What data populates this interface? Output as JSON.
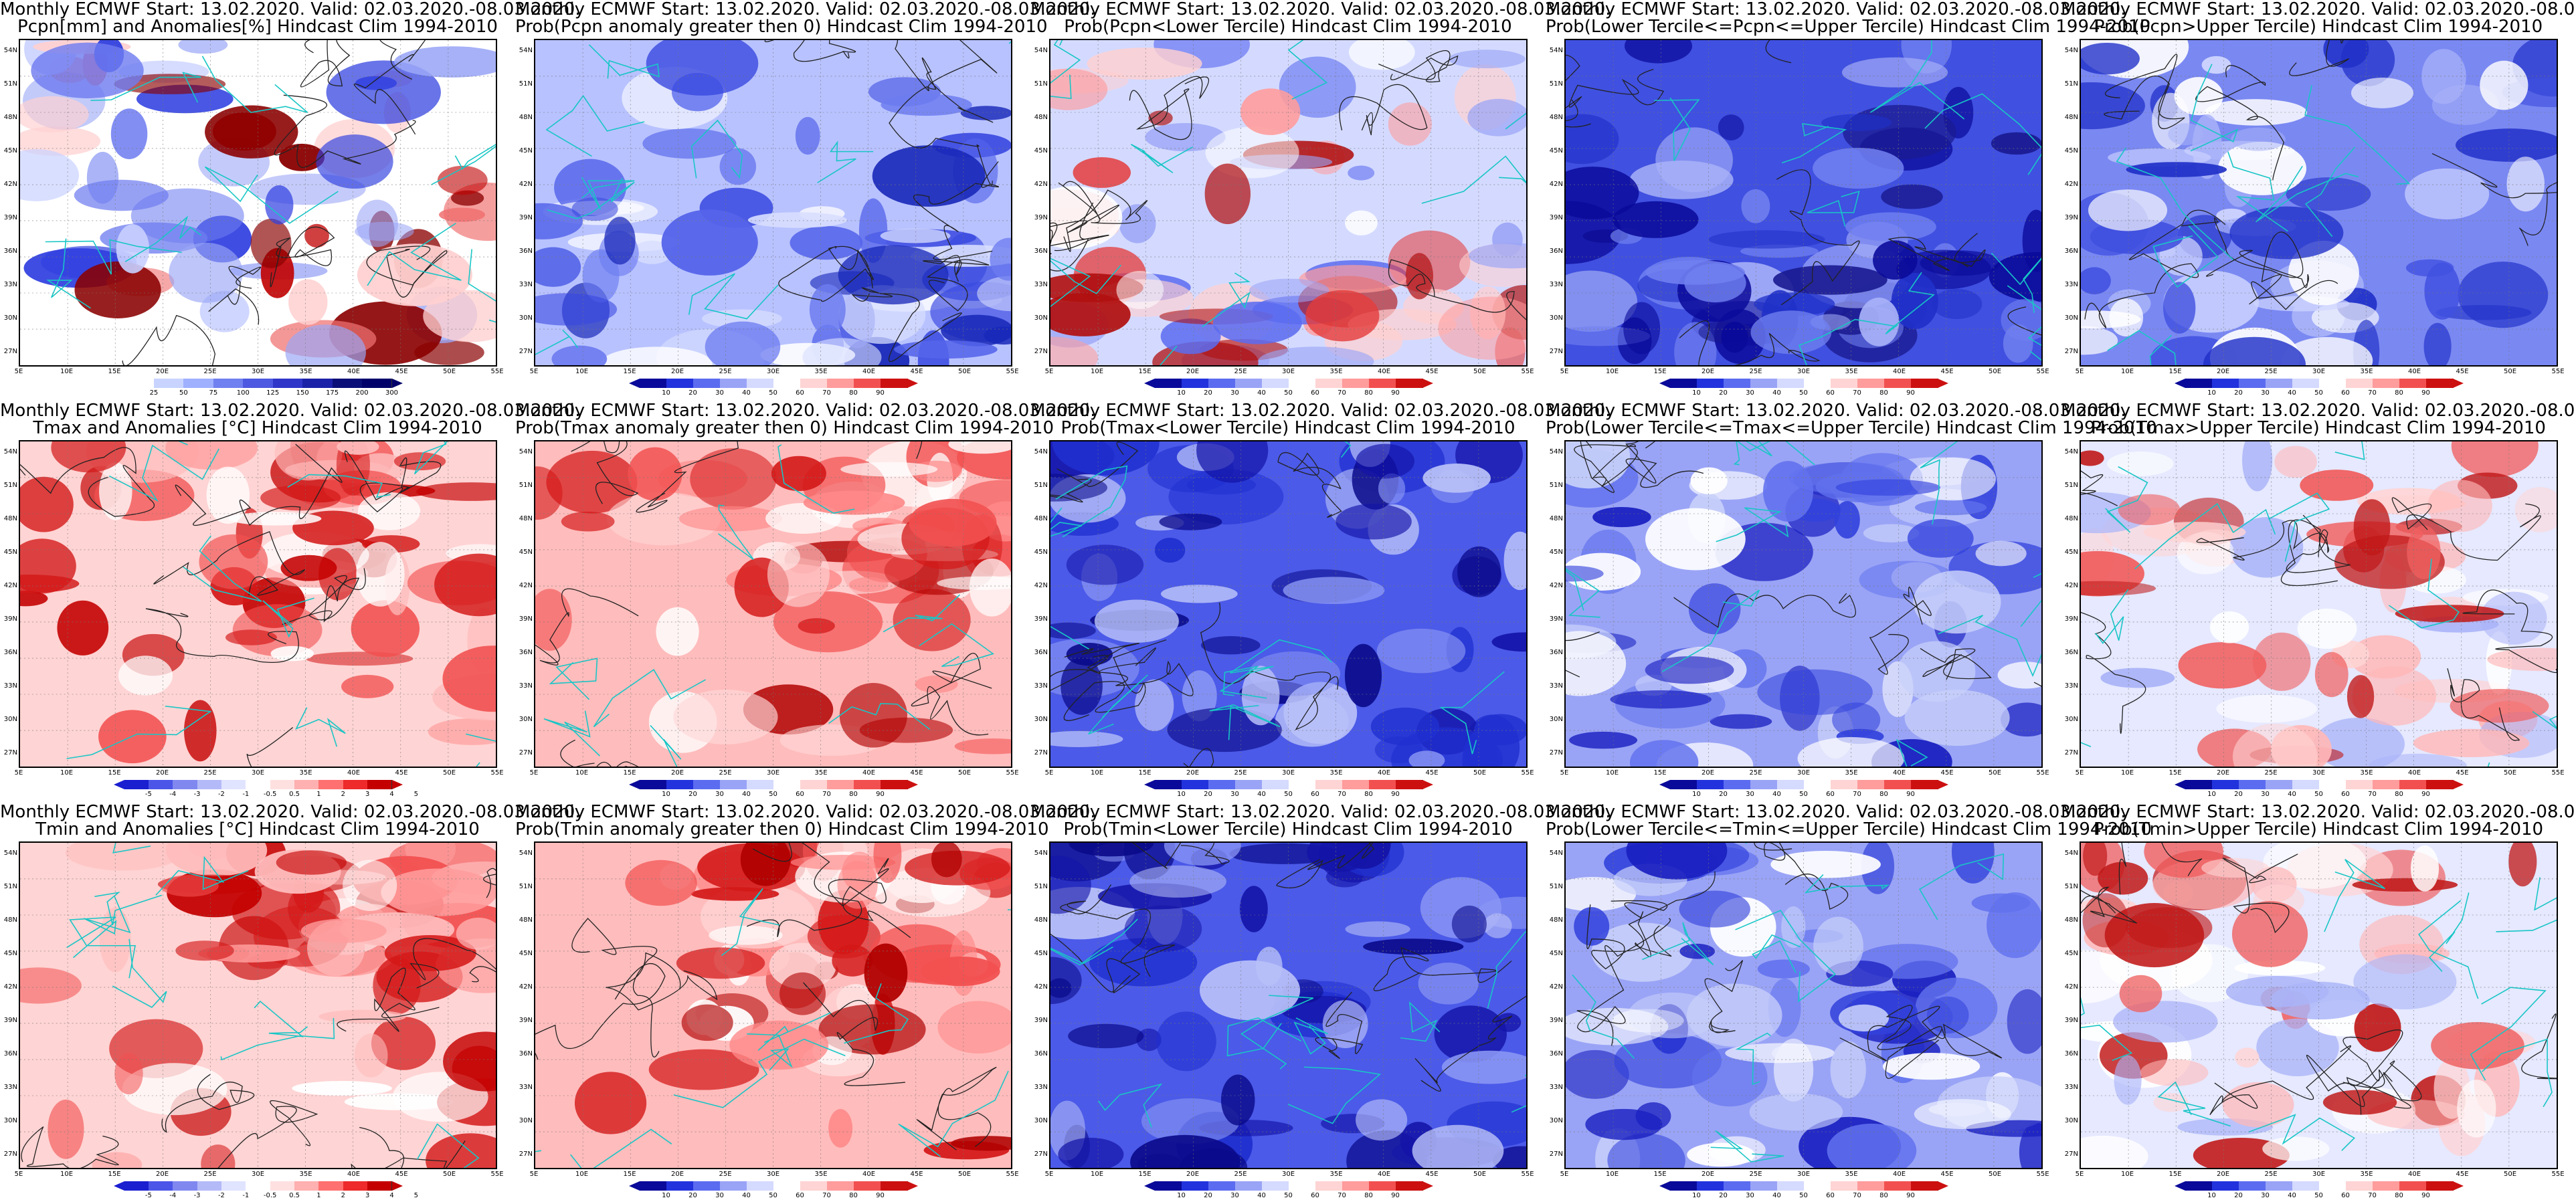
{
  "header_line": "Monthly ECMWF Start: 13.02.2020. Valid: 02.03.2020.-08.03.2020.",
  "lat_labels": [
    "54N",
    "51N",
    "48N",
    "45N",
    "42N",
    "39N",
    "36N",
    "33N",
    "30N",
    "27N"
  ],
  "lon_labels": [
    "5E",
    "10E",
    "15E",
    "20E",
    "25E",
    "30E",
    "35E",
    "40E",
    "45E",
    "50E",
    "55E"
  ],
  "colormaps": {
    "anom_pcpn": {
      "colors": [
        "#ffffff",
        "#c8d4ff",
        "#9fb0ff",
        "#7080f0",
        "#4d59e0",
        "#2f36c8",
        "#1c22a8",
        "#0a0f78",
        "#00006b"
      ],
      "labels": [
        "25",
        "50",
        "75",
        "100",
        "125",
        "150",
        "175",
        "200",
        "300"
      ]
    },
    "prob": {
      "colors": [
        "#0a0a9a",
        "#2233dd",
        "#5c6cf0",
        "#9aa4f6",
        "#d5daff",
        "#ffffff",
        "#ffd4d4",
        "#ff9c9c",
        "#f25050",
        "#cc1010"
      ],
      "labels": [
        "10",
        "20",
        "30",
        "40",
        "50",
        "60",
        "70",
        "80",
        "90"
      ]
    },
    "temp_anom": {
      "colors": [
        "#1a1fd0",
        "#4b55e8",
        "#8088f0",
        "#b4baf8",
        "#e0e4ff",
        "#ffffff",
        "#ffe0e0",
        "#ffb0b0",
        "#ff7070",
        "#ee2a2a",
        "#c40000"
      ],
      "labels": [
        "-5",
        "-4",
        "-3",
        "-2",
        "-1",
        "-0.5",
        "0.5",
        "1",
        "2",
        "3",
        "4",
        "5"
      ]
    }
  },
  "panels": [
    {
      "id": "pcpn-anom",
      "title2": "Pcpn[mm] and Anomalies[%] Hindcast Clim 1994-2010",
      "cmap": "anom_pcpn",
      "style": "pcpn"
    },
    {
      "id": "pcpn-prob-gt0",
      "title2": "Prob(Pcpn anomaly greater then 0) Hindcast Clim 1994-2010",
      "cmap": "prob",
      "style": "pcpn-prob"
    },
    {
      "id": "pcpn-prob-lower",
      "title2": "Prob(Pcpn<Lower Tercile) Hindcast Clim 1994-2010",
      "cmap": "prob",
      "style": "pcpn-lower"
    },
    {
      "id": "pcpn-prob-middle",
      "title2": "Prob(Lower Tercile<=Pcpn<=Upper Tercile) Hindcast Clim 1994-2010",
      "cmap": "prob",
      "style": "pcpn-mid"
    },
    {
      "id": "pcpn-prob-upper",
      "title2": "Prob(Pcpn>Upper Tercile) Hindcast Clim 1994-2010",
      "cmap": "prob",
      "style": "pcpn-upper"
    },
    {
      "id": "tmax-anom",
      "title2": "Tmax and Anomalies [°C] Hindcast Clim 1994-2010",
      "cmap": "temp_anom",
      "style": "warm"
    },
    {
      "id": "tmax-prob-gt0",
      "title2": "Prob(Tmax anomaly greater then 0) Hindcast Clim 1994-2010",
      "cmap": "prob",
      "style": "warm-strong"
    },
    {
      "id": "tmax-prob-lower",
      "title2": "Prob(Tmax<Lower Tercile) Hindcast Clim 1994-2010",
      "cmap": "prob",
      "style": "cold-strong"
    },
    {
      "id": "tmax-prob-middle",
      "title2": "Prob(Lower Tercile<=Tmax<=Upper Tercile) Hindcast Clim 1994-2010",
      "cmap": "prob",
      "style": "mid-blue"
    },
    {
      "id": "tmax-prob-upper",
      "title2": "Prob(Tmax>Upper Tercile) Hindcast Clim 1994-2010",
      "cmap": "prob",
      "style": "warm-light"
    },
    {
      "id": "tmin-anom",
      "title2": "Tmin and Anomalies [°C] Hindcast Clim 1994-2010",
      "cmap": "temp_anom",
      "style": "warm"
    },
    {
      "id": "tmin-prob-gt0",
      "title2": "Prob(Tmin anomaly greater then 0) Hindcast Clim 1994-2010",
      "cmap": "prob",
      "style": "warm-strong"
    },
    {
      "id": "tmin-prob-lower",
      "title2": "Prob(Tmin<Lower Tercile) Hindcast Clim 1994-2010",
      "cmap": "prob",
      "style": "cold-strong"
    },
    {
      "id": "tmin-prob-middle",
      "title2": "Prob(Lower Tercile<=Tmin<=Upper Tercile) Hindcast Clim 1994-2010",
      "cmap": "prob",
      "style": "mid-blue"
    },
    {
      "id": "tmin-prob-upper",
      "title2": "Prob(Tmin>Upper Tercile) Hindcast Clim 1994-2010",
      "cmap": "prob",
      "style": "warm-light"
    }
  ]
}
